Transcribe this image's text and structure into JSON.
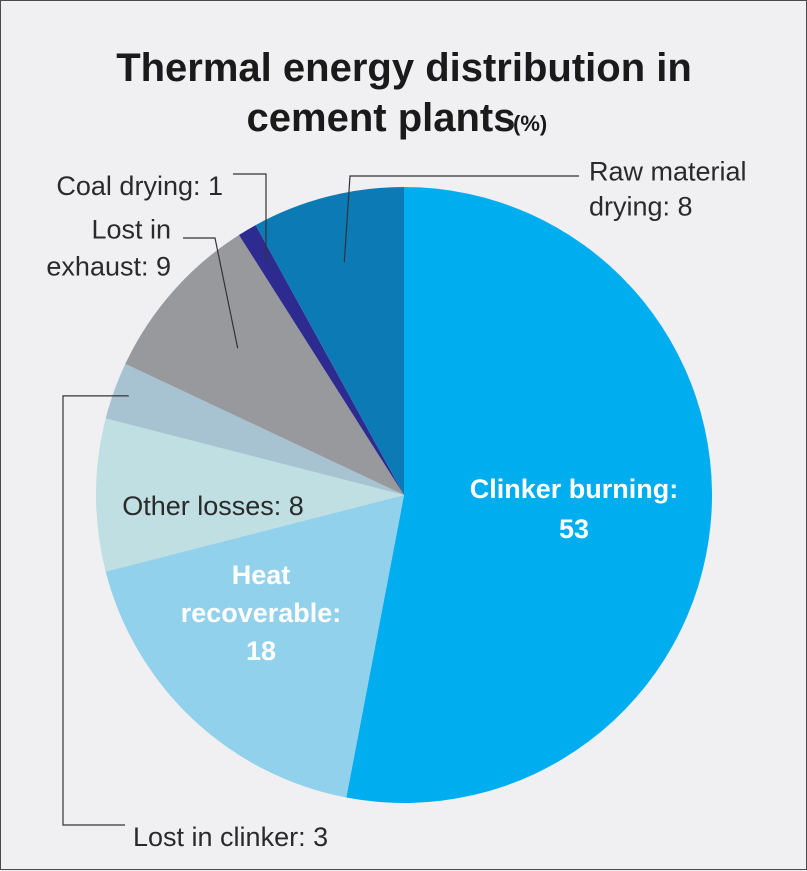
{
  "chart_data": {
    "type": "pie",
    "title": "Thermal energy distribution in cement plants",
    "title_line1": "Thermal energy distribution in",
    "title_line2": "cement plants",
    "title_unit": "(%)",
    "slices": [
      {
        "key": "clinker",
        "label_lines": [
          "Clinker burning:",
          "53"
        ],
        "value": 53,
        "color": "#00aeef",
        "label_inside": true
      },
      {
        "key": "heat",
        "label_lines": [
          "Heat",
          "recoverable:",
          "18"
        ],
        "value": 18,
        "color": "#92d1ec",
        "label_inside": true
      },
      {
        "key": "other",
        "label_lines": [
          "Other losses: 8"
        ],
        "value": 8,
        "color": "#bfdfe2",
        "label_inside": true
      },
      {
        "key": "clinkerlost",
        "label_lines": [
          "Lost in clinker: 3"
        ],
        "value": 3,
        "color": "#a7c3d2",
        "label_inside": false
      },
      {
        "key": "exhaust",
        "label_lines": [
          "Lost in",
          "exhaust: 9"
        ],
        "value": 9,
        "color": "#97999c",
        "label_inside": false
      },
      {
        "key": "coal",
        "label_lines": [
          "Coal drying: 1"
        ],
        "value": 1,
        "color": "#2d2b8f",
        "label_inside": false
      },
      {
        "key": "raw",
        "label_lines": [
          "Raw material",
          "drying: 8"
        ],
        "value": 8,
        "color": "#0b7ab5",
        "label_inside": false
      }
    ],
    "start_angle": "12 o'clock",
    "direction": "clockwise",
    "legend": "none"
  }
}
